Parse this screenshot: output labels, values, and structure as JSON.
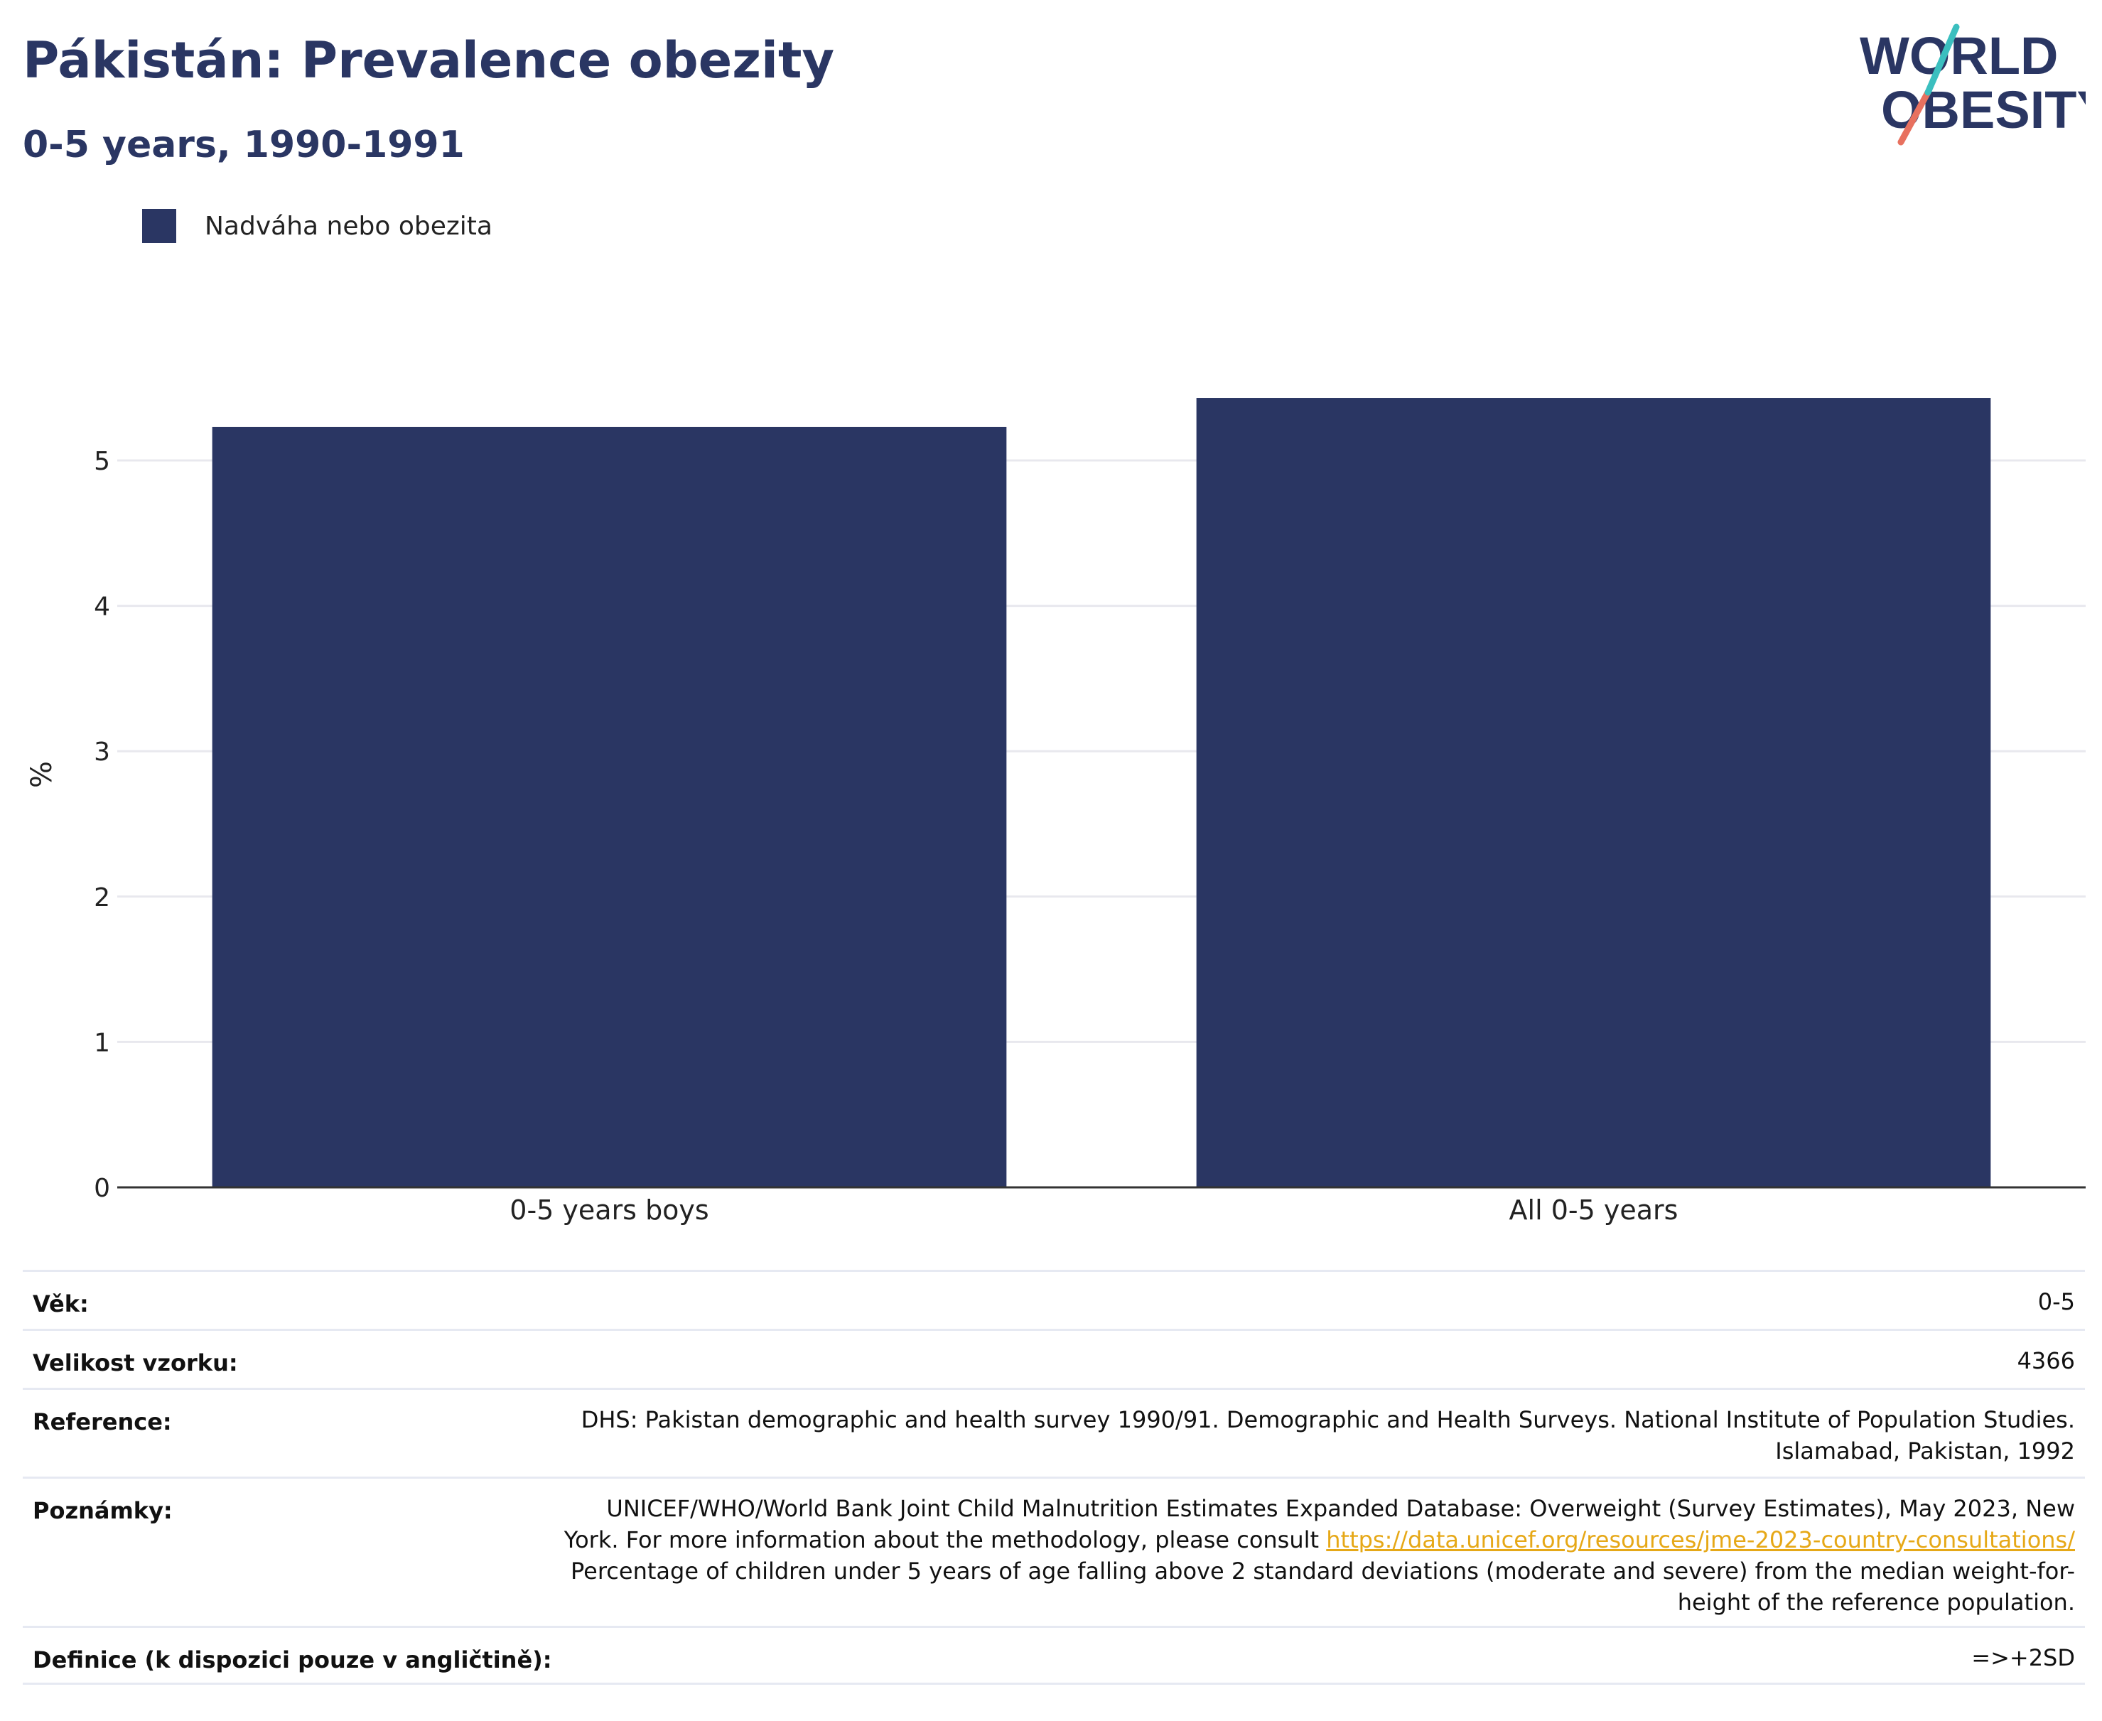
{
  "header": {
    "title": "Pákistán: Prevalence obezity",
    "subtitle": "0-5 years, 1990-1991"
  },
  "logo": {
    "line1": "WORLD",
    "line2": "OBESITY"
  },
  "colors": {
    "bar": "#2a3663",
    "grid": "#e8e8ee",
    "axis": "#333333",
    "link": "#e6a817",
    "logo_teal": "#3bbfbf",
    "logo_coral": "#e8715f"
  },
  "chart_data": {
    "type": "bar",
    "categories": [
      "0-5 years boys",
      "All 0-5 years"
    ],
    "series": [
      {
        "name": "Nadváha nebo obezita",
        "values": [
          5.23,
          5.43
        ]
      }
    ],
    "ylabel": "%",
    "yticks": [
      "0",
      "1",
      "2",
      "3",
      "4",
      "5"
    ],
    "ylim": [
      0,
      5.43
    ],
    "grid": true,
    "legend": "top-left"
  },
  "info": {
    "age": {
      "label": "Věk:",
      "value": "0-5"
    },
    "sample": {
      "label": "Velikost vzorku:",
      "value": "4366"
    },
    "reference": {
      "label": "Reference:",
      "line1": "DHS: Pakistan demographic and health survey 1990/91. Demographic and Health Surveys. National Institute of Population Studies.",
      "line2": "Islamabad, Pakistan, 1992"
    },
    "notes": {
      "label": "Poznámky:",
      "line1": "UNICEF/WHO/World Bank Joint Child Malnutrition Estimates Expanded Database: Overweight (Survey Estimates), May 2023, New",
      "line2_prefix": "York. For more information about the methodology, please consult ",
      "link": "https://data.unicef.org/resources/jme-2023-country-consultations/",
      "line3": "Percentage of children under 5 years of age falling above 2 standard deviations (moderate and severe) from the median weight-for-",
      "line4": "height of the reference population."
    },
    "definition": {
      "label": "Definice (k dispozici pouze v angličtině):",
      "value": "=>+2SD"
    }
  }
}
